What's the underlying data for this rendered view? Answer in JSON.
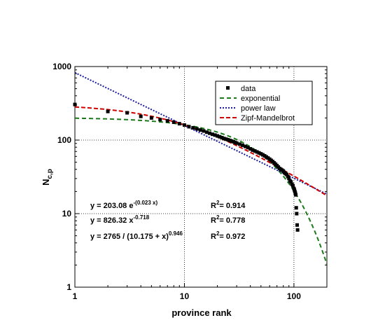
{
  "chart_data": {
    "type": "scatter",
    "xscale": "log",
    "yscale": "log",
    "xlim": [
      1,
      200
    ],
    "ylim": [
      1,
      1000
    ],
    "xlabel": "province   rank",
    "ylabel": "N",
    "ylabel_sub": "c,p",
    "x_ticks": [
      {
        "v": 1,
        "label": "1"
      },
      {
        "v": 10,
        "label": "10"
      },
      {
        "v": 100,
        "label": "100"
      }
    ],
    "y_ticks": [
      {
        "v": 1,
        "label": "1"
      },
      {
        "v": 10,
        "label": "10"
      },
      {
        "v": 100,
        "label": "100"
      },
      {
        "v": 1000,
        "label": "1000"
      }
    ],
    "grid": "dotted at decades",
    "legend_position": "top-right",
    "series": [
      {
        "name": "data",
        "kind": "points",
        "color": "#000000",
        "marker": "square",
        "points": [
          [
            1,
            305
          ],
          [
            2,
            245
          ],
          [
            3,
            235
          ],
          [
            4,
            210
          ],
          [
            5,
            200
          ],
          [
            6,
            190
          ],
          [
            7,
            183
          ],
          [
            8,
            175
          ],
          [
            9,
            167
          ],
          [
            10,
            160
          ],
          [
            11,
            152
          ],
          [
            12,
            147
          ],
          [
            13,
            142
          ],
          [
            14,
            137
          ],
          [
            15,
            133
          ],
          [
            16,
            128
          ],
          [
            17,
            124
          ],
          [
            18,
            120
          ],
          [
            19,
            117
          ],
          [
            20,
            114
          ],
          [
            21,
            111
          ],
          [
            22,
            108
          ],
          [
            23,
            105
          ],
          [
            24,
            103
          ],
          [
            25,
            101
          ],
          [
            26,
            99
          ],
          [
            27,
            97
          ],
          [
            28,
            95
          ],
          [
            29,
            93
          ],
          [
            30,
            91
          ],
          [
            32,
            88
          ],
          [
            34,
            85
          ],
          [
            36,
            82
          ],
          [
            38,
            79
          ],
          [
            40,
            76
          ],
          [
            42,
            73
          ],
          [
            44,
            71
          ],
          [
            46,
            69
          ],
          [
            48,
            67
          ],
          [
            50,
            65
          ],
          [
            52,
            63
          ],
          [
            54,
            61
          ],
          [
            56,
            59
          ],
          [
            58,
            57
          ],
          [
            60,
            55
          ],
          [
            62,
            53
          ],
          [
            64,
            51
          ],
          [
            66,
            49
          ],
          [
            68,
            47
          ],
          [
            70,
            45
          ],
          [
            72,
            43
          ],
          [
            74,
            41
          ],
          [
            76,
            40
          ],
          [
            78,
            39
          ],
          [
            80,
            38
          ],
          [
            82,
            36
          ],
          [
            84,
            35
          ],
          [
            86,
            34
          ],
          [
            88,
            32
          ],
          [
            90,
            30
          ],
          [
            92,
            28
          ],
          [
            94,
            27
          ],
          [
            96,
            25
          ],
          [
            98,
            24
          ],
          [
            100,
            22
          ],
          [
            101,
            21
          ],
          [
            102,
            20
          ],
          [
            103,
            19
          ],
          [
            104,
            18
          ],
          [
            105,
            12
          ],
          [
            106,
            10
          ],
          [
            107,
            7
          ],
          [
            108,
            6
          ]
        ]
      },
      {
        "name": "exponential",
        "kind": "fit",
        "model": "exp",
        "params": {
          "a": 203.08,
          "b": 0.023
        },
        "color": "#1a7a1a",
        "dash": "6,4"
      },
      {
        "name": "power  law",
        "kind": "fit",
        "model": "power",
        "params": {
          "a": 826.32,
          "b": 0.718
        },
        "color": "#1a1aa0",
        "dash": "2,2"
      },
      {
        "name": "Zipf-Mandelbrot",
        "kind": "fit",
        "model": "zipf",
        "params": {
          "a": 2765,
          "c": 10.175,
          "b": 0.946
        },
        "color": "#d00000",
        "dash": "6,3"
      }
    ]
  },
  "annotations": [
    {
      "base": "y = 203.08  e",
      "sup": "-(0.023 x)",
      "r2": "0.914"
    },
    {
      "base": "y = 826.32  x",
      "sup": "-0.718",
      "r2": "0.778"
    },
    {
      "base": "y = 2765 / (10.175 + x)",
      "sup": "0.946",
      "r2": "0.972"
    }
  ],
  "r2_label": "R",
  "r2_sup": "2",
  "r2_eq": "= "
}
